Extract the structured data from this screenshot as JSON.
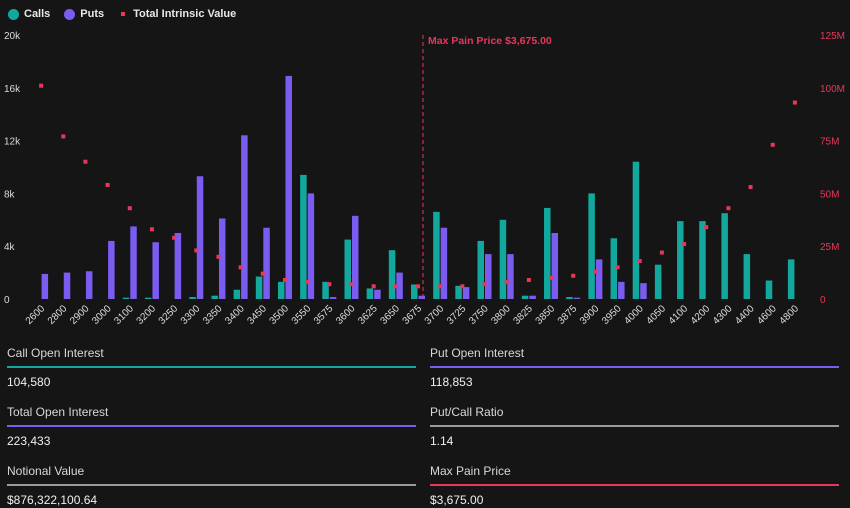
{
  "legend": {
    "calls_label": "Calls",
    "puts_label": "Puts",
    "intrinsic_label": "Total Intrinsic Value"
  },
  "colors": {
    "calls": "#13a89e",
    "puts": "#7a5cf0",
    "intrinsic": "#e8375b",
    "max_pain": "#e8375b",
    "neutral_line": "#9a9a9a"
  },
  "chart_data": {
    "type": "bar",
    "categories": [
      "2600",
      "2800",
      "2900",
      "3000",
      "3100",
      "3200",
      "3250",
      "3300",
      "3350",
      "3400",
      "3450",
      "3500",
      "3550",
      "3575",
      "3600",
      "3625",
      "3650",
      "3675",
      "3700",
      "3725",
      "3750",
      "3800",
      "3825",
      "3850",
      "3875",
      "3900",
      "3950",
      "4000",
      "4050",
      "4100",
      "4200",
      "4300",
      "4400",
      "4600",
      "4800"
    ],
    "series": [
      {
        "name": "Calls",
        "axis": "left",
        "values": [
          0,
          0,
          0,
          0,
          100,
          100,
          0,
          150,
          250,
          700,
          1700,
          1300,
          9400,
          1300,
          4500,
          800,
          3700,
          1100,
          6600,
          1000,
          4400,
          6000,
          250,
          6900,
          150,
          8000,
          4600,
          10400,
          2600,
          5900,
          5900,
          6500,
          3400,
          1400,
          3000
        ]
      },
      {
        "name": "Puts",
        "axis": "left",
        "values": [
          1900,
          2000,
          2100,
          4400,
          5500,
          4300,
          5000,
          9300,
          6100,
          12400,
          5400,
          16900,
          8000,
          150,
          6300,
          700,
          2000,
          250,
          5400,
          900,
          3400,
          3400,
          250,
          5000,
          100,
          3000,
          1300,
          1200,
          0,
          0,
          0,
          0,
          0,
          0,
          0
        ]
      },
      {
        "name": "Total Intrinsic Value",
        "axis": "right",
        "type": "scatter",
        "values": [
          101000000,
          77000000,
          65000000,
          54000000,
          43000000,
          33000000,
          29000000,
          23000000,
          20000000,
          15000000,
          12000000,
          9000000,
          8000000,
          7000000,
          7000000,
          6000000,
          6000000,
          6000000,
          6000000,
          6000000,
          7000000,
          8000000,
          9000000,
          10000000,
          11000000,
          13000000,
          15000000,
          18000000,
          22000000,
          26000000,
          34000000,
          43000000,
          53000000,
          73000000,
          93000000
        ]
      }
    ],
    "y_left": {
      "min": 0,
      "max": 20000,
      "ticks": [
        0,
        4000,
        8000,
        12000,
        16000,
        20000
      ],
      "tick_labels": [
        "0",
        "4k",
        "8k",
        "12k",
        "16k",
        "20k"
      ]
    },
    "y_right": {
      "min": 0,
      "max": 125000000,
      "ticks": [
        0,
        25000000,
        50000000,
        75000000,
        100000000,
        125000000
      ],
      "tick_labels": [
        "0",
        "25M",
        "50M",
        "75M",
        "100M",
        "125M"
      ]
    },
    "max_pain": {
      "category": "3675",
      "label": "Max Pain Price $3,675.00"
    },
    "grid": false,
    "legend_position": "top-left"
  },
  "stats": [
    {
      "label": "Call Open Interest",
      "value": "104,580",
      "line_color": "#13a89e"
    },
    {
      "label": "Put Open Interest",
      "value": "118,853",
      "line_color": "#7a5cf0"
    },
    {
      "label": "Total Open Interest",
      "value": "223,433",
      "line_color": "#7a5cf0"
    },
    {
      "label": "Put/Call Ratio",
      "value": "1.14",
      "line_color": "#9a9a9a"
    },
    {
      "label": "Notional Value",
      "value": "$876,322,100.64",
      "line_color": "#9a9a9a"
    },
    {
      "label": "Max Pain Price",
      "value": "$3,675.00",
      "line_color": "#e8375b"
    }
  ]
}
